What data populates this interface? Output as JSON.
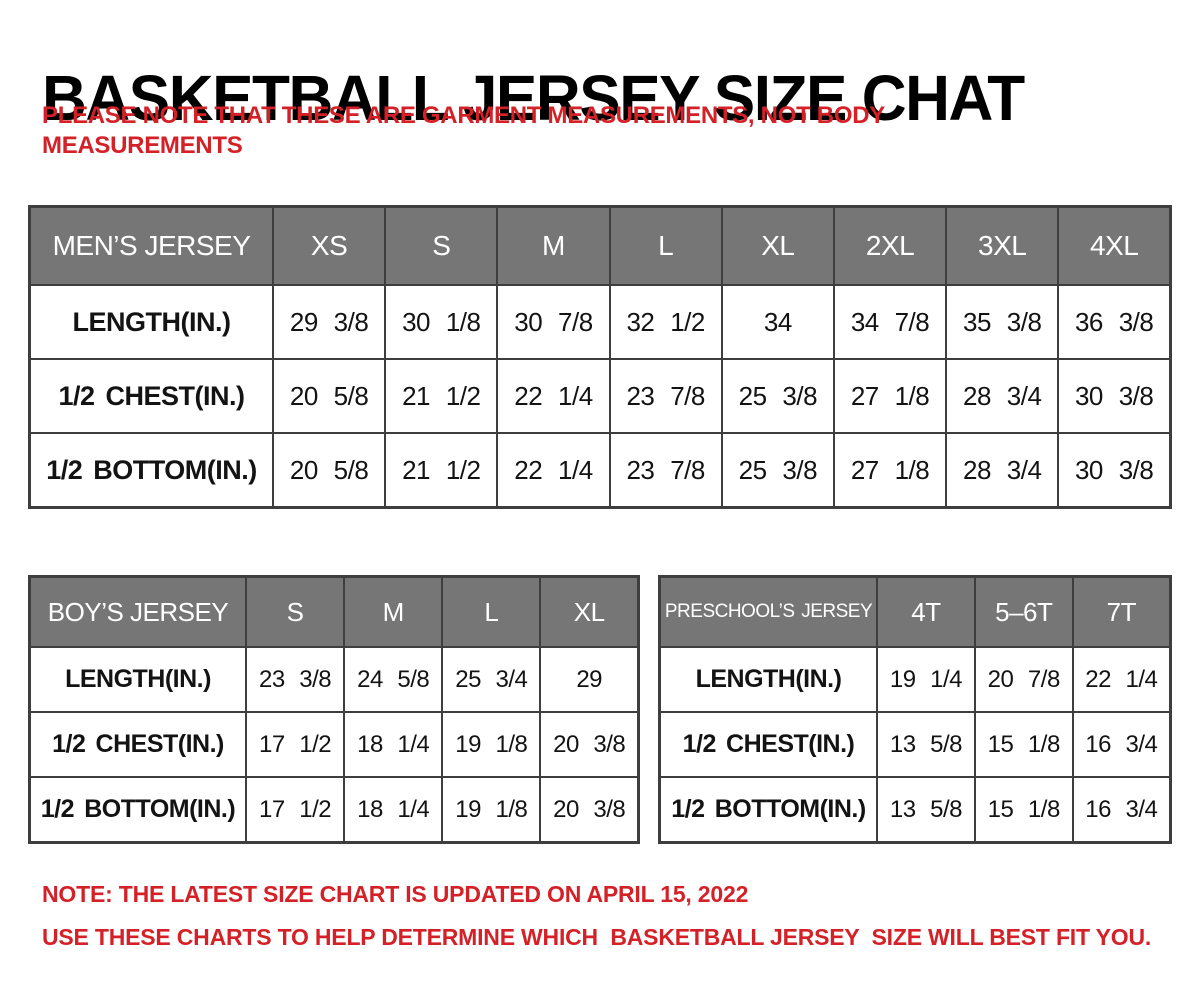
{
  "page": {
    "title": "BASKETBALL JERSEY SIZE CHAT",
    "subtitle_line1": "PLEASE NOTE THAT THESE ARE GARMENT MEASUREMENTS, NOT BODY",
    "subtitle_line2": "MEASUREMENTS",
    "note1": "NOTE: THE LATEST SIZE CHART IS UPDATED ON APRIL 15, 2022",
    "note2": "USE THESE CHARTS TO HELP DETERMINE WHICH  BASKETBALL JERSEY  SIZE WILL BEST FIT YOU."
  },
  "colors": {
    "header_gray": "#767676",
    "header_text": "#ffffff",
    "border": "#3e3e3e",
    "accent_red": "#d42127",
    "body_text": "#131313",
    "background": "#ffffff"
  },
  "tables": {
    "mens": {
      "header": [
        "MEN’S JERSEY",
        "XS",
        "S",
        "M",
        "L",
        "XL",
        "2XL",
        "3XL",
        "4XL"
      ],
      "rows": [
        [
          "LENGTH(IN.)",
          "29 3/8",
          "30 1/8",
          "30 7/8",
          "32 1/2",
          "34",
          "34 7/8",
          "35 3/8",
          "36 3/8"
        ],
        [
          "1/2 CHEST(IN.)",
          "20 5/8",
          "21 1/2",
          "22 1/4",
          "23 7/8",
          "25 3/8",
          "27 1/8",
          "28 3/4",
          "30 3/8"
        ],
        [
          "1/2 BOTTOM(IN.)",
          "20 5/8",
          "21 1/2",
          "22 1/4",
          "23 7/8",
          "25 3/8",
          "27 1/8",
          "28 3/4",
          "30 3/8"
        ]
      ]
    },
    "boys": {
      "header": [
        "BOY’S JERSEY",
        "S",
        "M",
        "L",
        "XL"
      ],
      "rows": [
        [
          "LENGTH(IN.)",
          "23 3/8",
          "24 5/8",
          "25 3/4",
          "29"
        ],
        [
          "1/2 CHEST(IN.)",
          "17 1/2",
          "18 1/4",
          "19 1/8",
          "20 3/8"
        ],
        [
          "1/2 BOTTOM(IN.)",
          "17 1/2",
          "18 1/4",
          "19 1/8",
          "20 3/8"
        ]
      ]
    },
    "preschools": {
      "header": [
        "PRESCHOOL’S JERSEY",
        "4T",
        "5–6T",
        "7T"
      ],
      "rows": [
        [
          "LENGTH(IN.)",
          "19 1/4",
          "20 7/8",
          "22 1/4"
        ],
        [
          "1/2 CHEST(IN.)",
          "13 5/8",
          "15 1/8",
          "16 3/4"
        ],
        [
          "1/2 BOTTOM(IN.)",
          "13 5/8",
          "15 1/8",
          "16 3/4"
        ]
      ]
    }
  }
}
